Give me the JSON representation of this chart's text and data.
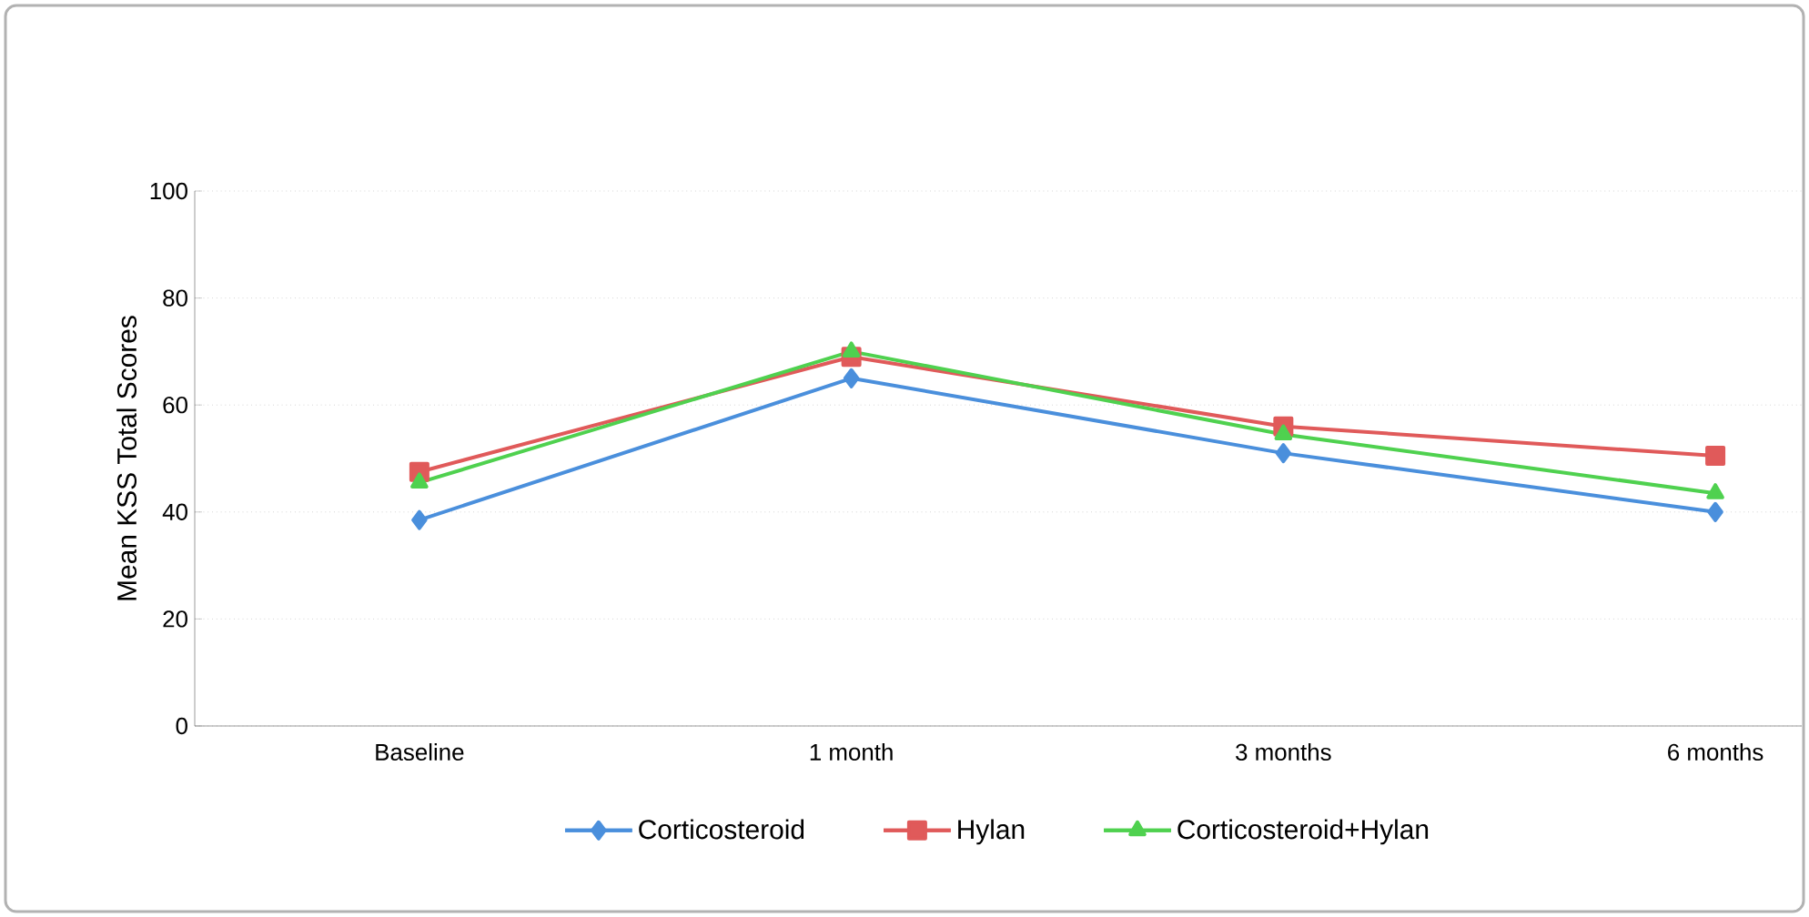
{
  "chart_data": {
    "type": "line",
    "ylabel": "Mean KSS Total Scores",
    "categories": [
      "Baseline",
      "1 month",
      "3 months",
      "6 months"
    ],
    "series": [
      {
        "name": "Corticosteroid",
        "color": "#4a8fdc",
        "marker": "diamond",
        "values": [
          38.5,
          65,
          51,
          40
        ]
      },
      {
        "name": "Hylan",
        "color": "#e05a5a",
        "marker": "square",
        "values": [
          47.5,
          69,
          56,
          50.5
        ]
      },
      {
        "name": "Corticosteroid+Hylan",
        "color": "#4fd14f",
        "marker": "triangle",
        "values": [
          45.5,
          70,
          54.5,
          43.5
        ]
      }
    ],
    "ylim": [
      0,
      100
    ],
    "yticks": [
      0,
      20,
      40,
      60,
      80,
      100
    ],
    "grid": "y",
    "legend": "bottom"
  }
}
